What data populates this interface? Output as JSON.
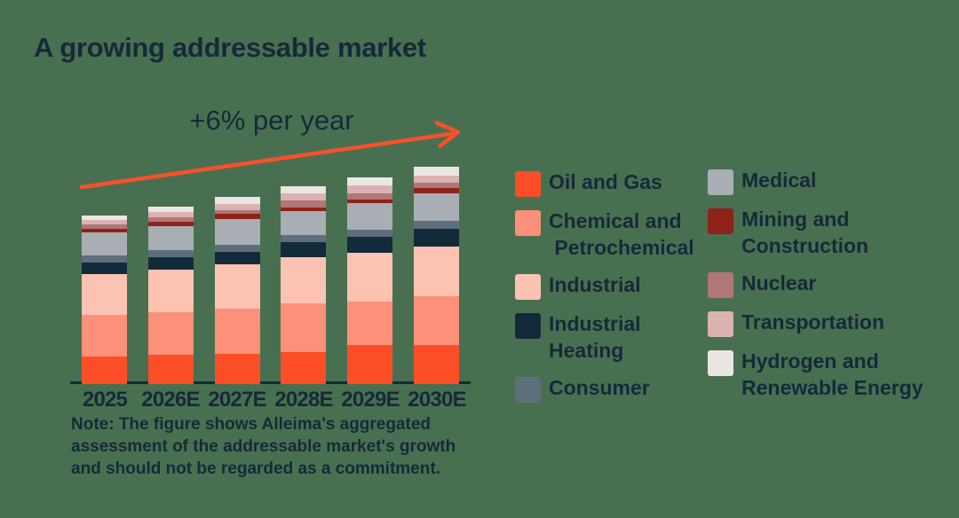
{
  "title": "A growing addressable market",
  "annotation": "+6% per year",
  "note": "Note: The figure shows Alleima's aggregated\nassessment of the addressable market's growth\nand should not be regarded as a commitment.",
  "colors": {
    "background": "#487050",
    "text": "#16293a",
    "arrow": "#f8502b",
    "axis": "#16293a"
  },
  "chart_data": {
    "type": "bar",
    "stacked": true,
    "orientation": "vertical",
    "title": "A growing addressable market",
    "annotation": "+6% per year",
    "xlabel": "",
    "ylabel": "",
    "y_axis_shown": false,
    "units": "relative market size (pixel-height estimates; no numeric axis in figure)",
    "grid": false,
    "legend_position": "right, two columns",
    "categories": [
      "2025",
      "2026E",
      "2027E",
      "2028E",
      "2029E",
      "2030E"
    ],
    "totals": [
      190,
      200,
      211,
      223,
      233,
      245
    ],
    "growth_per_year": "+6%",
    "series": [
      {
        "name": "Oil and Gas",
        "color": "#fb4e26",
        "values": [
          31,
          33,
          34,
          36,
          44,
          44
        ]
      },
      {
        "name": "Chemical and Petrochemical",
        "color": "#fc9078",
        "values": [
          47,
          48,
          51,
          55,
          49,
          55
        ]
      },
      {
        "name": "Industrial",
        "color": "#fcc2b2",
        "values": [
          46,
          48,
          50,
          52,
          55,
          56
        ]
      },
      {
        "name": "Industrial Heating",
        "color": "#132a3a",
        "values": [
          13,
          14,
          14,
          17,
          18,
          20
        ]
      },
      {
        "name": "Consumer",
        "color": "#5d6e7d",
        "values": [
          8,
          8,
          8,
          8,
          8,
          9
        ]
      },
      {
        "name": "Medical",
        "color": "#a9aeb5",
        "values": [
          26,
          27,
          29,
          27,
          30,
          31
        ]
      },
      {
        "name": "Mining and Construction",
        "color": "#8f2319",
        "values": [
          4,
          5,
          6,
          4,
          4,
          6
        ]
      },
      {
        "name": "Nuclear",
        "color": "#b07678",
        "values": [
          5,
          5,
          4,
          8,
          7,
          6
        ]
      },
      {
        "name": "Transportation",
        "color": "#d9b2b1",
        "values": [
          5,
          6,
          7,
          8,
          9,
          8
        ]
      },
      {
        "name": "Hydrogen and Renewable Energy",
        "color": "#ebe6e3",
        "values": [
          5,
          6,
          8,
          8,
          9,
          10
        ]
      }
    ]
  },
  "legend": {
    "col1": [
      {
        "label": "Oil and Gas",
        "color": "#fb4e26"
      },
      {
        "label": "Chemical and\n Petrochemical",
        "color": "#fc9078"
      },
      {
        "label": "Industrial",
        "color": "#fcc2b2"
      },
      {
        "label": "Industrial\nHeating",
        "color": "#132a3a"
      },
      {
        "label": "Consumer",
        "color": "#5d6e7d"
      }
    ],
    "col2": [
      {
        "label": "Medical",
        "color": "#a9aeb5"
      },
      {
        "label": "Mining and\nConstruction",
        "color": "#8f2319"
      },
      {
        "label": "Nuclear",
        "color": "#b07678"
      },
      {
        "label": "Transportation",
        "color": "#d9b2b1"
      },
      {
        "label": "Hydrogen and\nRenewable Energy",
        "color": "#ebe6e3"
      }
    ]
  }
}
